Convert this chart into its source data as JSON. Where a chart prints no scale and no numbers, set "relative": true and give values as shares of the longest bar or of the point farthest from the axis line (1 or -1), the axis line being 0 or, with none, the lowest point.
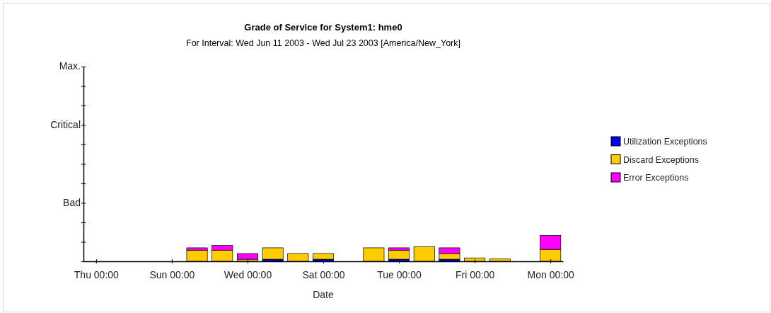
{
  "chart_data": {
    "type": "bar",
    "stacked": true,
    "relative": true,
    "title": "Grade of Service for System1: hme0",
    "subtitle": "For Interval: Wed Jun 11 2003 - Wed Jul 23 2003 [America/New_York]",
    "xlabel": "Date",
    "x": [
      "2003-06-16",
      "2003-06-17",
      "2003-06-18",
      "2003-06-19",
      "2003-06-20",
      "2003-06-21",
      "2003-06-23",
      "2003-06-24",
      "2003-06-25",
      "2003-06-26",
      "2003-06-27",
      "2003-06-28",
      "2003-06-30"
    ],
    "series": [
      {
        "name": "Utilization Exceptions",
        "color": "#0000ff",
        "values": [
          0,
          0,
          0,
          0.08,
          0,
          0.08,
          0,
          0.08,
          0,
          0.08,
          0,
          0,
          0
        ]
      },
      {
        "name": "Discard Exceptions",
        "color": "#ffcc00",
        "values": [
          0.43,
          0.43,
          0.08,
          0.44,
          0.3,
          0.22,
          0.52,
          0.35,
          0.56,
          0.22,
          0.13,
          0.09,
          0.46
        ]
      },
      {
        "name": "Error Exceptions",
        "color": "#ff00ff",
        "values": [
          0.09,
          0.18,
          0.22,
          0,
          0,
          0,
          0,
          0.09,
          0,
          0.22,
          0,
          0,
          0.54
        ]
      }
    ],
    "xlim": [
      "2003-06-11T12:00",
      "2003-06-30T12:00"
    ],
    "xticks": [
      {
        "value": "2003-06-12",
        "label": "Thu 00:00"
      },
      {
        "value": "2003-06-15",
        "label": "Sun 00:00"
      },
      {
        "value": "2003-06-18",
        "label": "Wed 00:00"
      },
      {
        "value": "2003-06-21",
        "label": "Sat 00:00"
      },
      {
        "value": "2003-06-24",
        "label": "Tue 00:00"
      },
      {
        "value": "2003-06-27",
        "label": "Fri 00:00"
      },
      {
        "value": "2003-06-30",
        "label": "Mon 00:00"
      }
    ],
    "annotations": [
      "Bad",
      "Critical",
      "Max."
    ],
    "legend": "right"
  }
}
